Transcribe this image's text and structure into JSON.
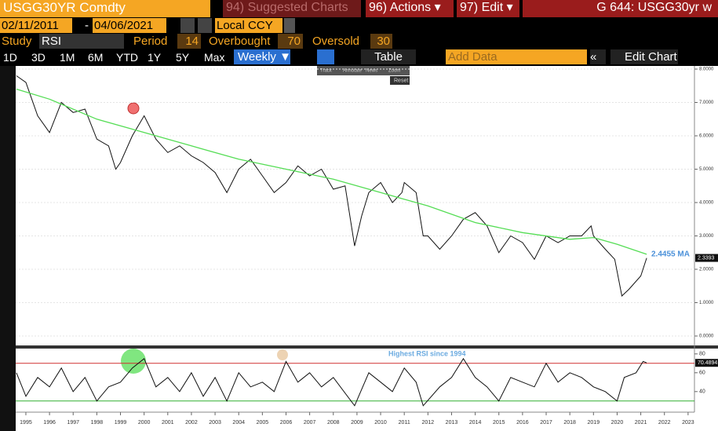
{
  "toolbar": {
    "security": "USGG30YR Comdty",
    "suggested": "94) Suggested Charts",
    "actions": "96) Actions ▾",
    "edit": "97) Edit ▾",
    "page_code": "G 644: USGG30yr w",
    "start_date": "02/11/2011",
    "date_sep": "-",
    "end_date": "04/06/2021",
    "currency": "Local CCY",
    "study_label": "Study",
    "study": "RSI",
    "period_label": "Period",
    "period": 14,
    "overbought_label": "Overbought",
    "overbought": 70,
    "oversold_label": "Oversold",
    "oversold": 30,
    "ranges": [
      "1D",
      "3D",
      "1M",
      "6M",
      "YTD",
      "1Y",
      "5Y",
      "Max"
    ],
    "frequency": "Weekly ▼",
    "table": "Table",
    "add_data": "Add Data",
    "edit_chart": "Edit Chart",
    "mini_tools": [
      "Track",
      "Annotate",
      "News",
      "Zoom"
    ],
    "reset": "Reset"
  },
  "chart_data": [
    {
      "type": "line",
      "xlim": [
        1994.57,
        2023.27
      ],
      "ylim": [
        0,
        8
      ],
      "yticks": [
        {
          "value": 0,
          "label": "0.0000"
        },
        {
          "value": 1,
          "label": "1.0000"
        },
        {
          "value": 2,
          "label": "2.0000"
        },
        {
          "value": 3,
          "label": "3.0000"
        },
        {
          "value": 4,
          "label": "4.0000"
        },
        {
          "value": 5,
          "label": "5.0000"
        },
        {
          "value": 6,
          "label": "6.0000"
        },
        {
          "value": 7,
          "label": "7.0000"
        },
        {
          "value": 8,
          "label": "8.0000"
        }
      ],
      "grid": true,
      "series": [
        {
          "color": "#111111",
          "x": [
            1994.6,
            1995.0,
            1995.5,
            1996.0,
            1996.5,
            1997.0,
            1997.5,
            1998.0,
            1998.5,
            1998.8,
            1999.0,
            1999.5,
            2000.0,
            2000.5,
            2001.0,
            2001.5,
            2002.0,
            2002.5,
            2003.0,
            2003.5,
            2004.0,
            2004.5,
            2005.0,
            2005.5,
            2006.0,
            2006.5,
            2007.0,
            2007.5,
            2008.0,
            2008.5,
            2008.9,
            2009.2,
            2009.5,
            2010.0,
            2010.5,
            2010.9,
            2011.0,
            2011.5,
            2011.8,
            2012.0,
            2012.5,
            2013.0,
            2013.5,
            2014.0,
            2014.5,
            2015.0,
            2015.5,
            2016.0,
            2016.5,
            2017.0,
            2017.5,
            2018.0,
            2018.5,
            2018.9,
            2019.0,
            2019.5,
            2019.9,
            2020.2,
            2020.5,
            2021.0,
            2021.25
          ],
          "values": [
            7.8,
            7.6,
            6.6,
            6.1,
            7.0,
            6.7,
            6.8,
            5.9,
            5.7,
            5.0,
            5.2,
            6.0,
            6.6,
            5.9,
            5.5,
            5.7,
            5.4,
            5.2,
            4.9,
            4.3,
            5.0,
            5.3,
            4.8,
            4.3,
            4.6,
            5.1,
            4.8,
            5.0,
            4.4,
            4.5,
            2.7,
            3.6,
            4.3,
            4.6,
            4.0,
            4.3,
            4.6,
            4.3,
            3.0,
            3.0,
            2.6,
            3.0,
            3.5,
            3.7,
            3.3,
            2.5,
            3.0,
            2.8,
            2.3,
            3.0,
            2.8,
            3.0,
            3.0,
            3.3,
            3.0,
            2.6,
            2.3,
            1.2,
            1.4,
            1.8,
            2.34
          ]
        },
        {
          "color": "#55dd55",
          "x": [
            1994.6,
            1996.0,
            1998.0,
            2000.0,
            2002.0,
            2004.0,
            2006.0,
            2008.0,
            2010.0,
            2012.0,
            2014.0,
            2016.0,
            2018.0,
            2019.0,
            2020.0,
            2021.25
          ],
          "values": [
            7.4,
            7.1,
            6.5,
            6.1,
            5.7,
            5.3,
            5.0,
            4.7,
            4.3,
            3.9,
            3.4,
            3.1,
            2.9,
            2.95,
            2.75,
            2.45
          ]
        }
      ],
      "annotations": [
        "2.4455 MA",
        "2.3393"
      ]
    },
    {
      "type": "line",
      "xlim": [
        1994.57,
        2023.27
      ],
      "ylim": [
        19,
        84
      ],
      "yticks": [
        40,
        60,
        80
      ],
      "xticks": [
        1995,
        1996,
        1997,
        1998,
        1999,
        2000,
        2001,
        2002,
        2003,
        2004,
        2005,
        2006,
        2007,
        2008,
        2009,
        2010,
        2011,
        2012,
        2013,
        2014,
        2015,
        2016,
        2017,
        2018,
        2019,
        2020,
        2021,
        2022,
        2023
      ],
      "overbought_color": "#d03030",
      "oversold_color": "#30b030",
      "series": [
        {
          "color": "#111111",
          "x": [
            1994.6,
            1995,
            1995.5,
            1996,
            1996.5,
            1997,
            1997.5,
            1998,
            1998.5,
            1999,
            1999.5,
            2000,
            2000.5,
            2001,
            2001.5,
            2002,
            2002.5,
            2003,
            2003.5,
            2004,
            2004.5,
            2005,
            2005.5,
            2006,
            2006.5,
            2007,
            2007.5,
            2008,
            2008.9,
            2009.5,
            2010,
            2010.5,
            2011,
            2011.5,
            2011.8,
            2012.5,
            2013,
            2013.5,
            2014,
            2014.5,
            2015,
            2015.5,
            2016,
            2016.5,
            2017,
            2017.5,
            2018,
            2018.5,
            2019,
            2019.5,
            2020,
            2020.3,
            2020.8,
            2021.1,
            2021.25
          ],
          "values": [
            60,
            35,
            55,
            45,
            65,
            40,
            55,
            30,
            45,
            50,
            65,
            75,
            45,
            55,
            40,
            60,
            35,
            55,
            30,
            60,
            45,
            50,
            40,
            72,
            50,
            60,
            45,
            55,
            25,
            60,
            50,
            40,
            65,
            50,
            25,
            45,
            55,
            75,
            55,
            45,
            30,
            55,
            50,
            45,
            70,
            50,
            60,
            55,
            45,
            40,
            30,
            55,
            60,
            72,
            70.49
          ]
        }
      ],
      "annotations": [
        "Highest RSI since 1994",
        "70.4894"
      ]
    }
  ]
}
